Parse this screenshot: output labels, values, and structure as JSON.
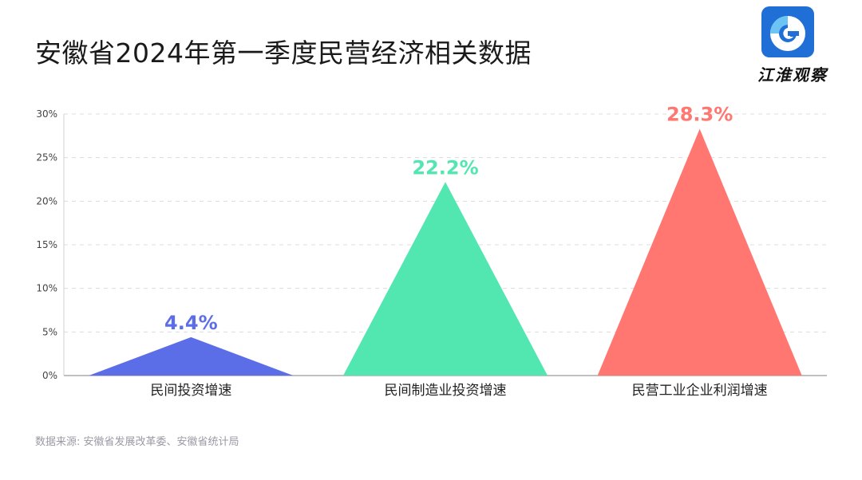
{
  "header": {
    "title": "安徽省2024年第一季度民营经济相关数据"
  },
  "logo": {
    "icon": "jianghuai-logo-icon",
    "text": "江淮观察",
    "tile_color": "#1f6fd6"
  },
  "chart_data": {
    "type": "bar",
    "mark_shape": "triangle",
    "categories": [
      "民间投资增速",
      "民间制造业投资增速",
      "民营工业企业利润增速"
    ],
    "values": [
      4.4,
      22.2,
      28.3
    ],
    "value_labels": [
      "4.4%",
      "22.2%",
      "28.3%"
    ],
    "colors": [
      "#5b6ee8",
      "#52e6b0",
      "#ff7770"
    ],
    "title": "",
    "xlabel": "",
    "ylabel": "",
    "ylim": [
      0,
      30
    ],
    "yticks": [
      0,
      5,
      10,
      15,
      20,
      25,
      30
    ],
    "ytick_labels": [
      "0%",
      "5%",
      "10%",
      "15%",
      "20%",
      "25%",
      "30%"
    ],
    "grid": true,
    "legend": "none"
  },
  "footer": {
    "source": "数据来源: 安徽省发展改革委、安徽省统计局"
  }
}
